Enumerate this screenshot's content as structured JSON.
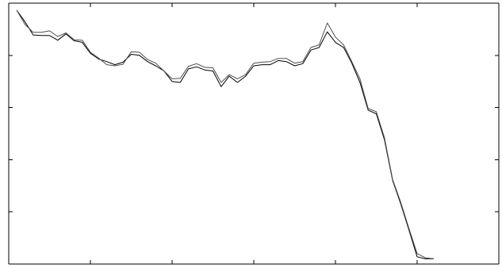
{
  "chart_data": {
    "type": "line",
    "xlim": [
      0,
      60
    ],
    "ylim": [
      0,
      5
    ],
    "grid": false,
    "legend": "none",
    "x_ticks": [
      10,
      20,
      30,
      40,
      50
    ],
    "y_ticks": [
      1,
      2,
      3,
      4
    ],
    "series": [
      {
        "color": "#000000",
        "x": [
          1,
          2,
          3,
          4,
          5,
          6,
          7,
          8,
          9,
          10,
          11,
          12,
          13,
          14,
          15,
          16,
          17,
          18,
          19,
          20,
          21,
          22,
          23,
          24,
          25,
          26,
          27,
          28,
          29,
          30,
          31,
          32,
          33,
          34,
          35,
          36,
          37,
          38,
          39,
          40,
          41,
          42,
          43,
          44,
          45,
          46,
          47,
          48,
          49,
          50,
          51,
          52
        ],
        "y": [
          4.86,
          4.64,
          4.39,
          4.38,
          4.38,
          4.29,
          4.41,
          4.28,
          4.25,
          4.04,
          3.93,
          3.88,
          3.82,
          3.87,
          4.02,
          4.0,
          3.88,
          3.8,
          3.7,
          3.5,
          3.48,
          3.74,
          3.78,
          3.72,
          3.7,
          3.4,
          3.6,
          3.48,
          3.6,
          3.8,
          3.82,
          3.82,
          3.9,
          3.88,
          3.8,
          3.84,
          4.1,
          4.15,
          4.45,
          4.25,
          4.15,
          3.85,
          3.48,
          2.95,
          2.88,
          2.38,
          1.6,
          1.15,
          0.65,
          0.14,
          0.1,
          0.1
        ]
      },
      {
        "color": "#4d4d4d",
        "x": [
          1,
          2,
          3,
          4,
          5,
          6,
          7,
          8,
          9,
          10,
          11,
          12,
          13,
          14,
          15,
          16,
          17,
          18,
          19,
          20,
          21,
          22,
          23,
          24,
          25,
          26,
          27,
          28,
          29,
          30,
          31,
          32,
          33,
          34,
          35,
          36,
          37,
          38,
          39,
          40,
          41,
          42,
          43,
          44,
          45,
          46,
          47,
          48,
          49,
          50,
          51,
          52
        ],
        "y": [
          4.86,
          4.59,
          4.44,
          4.44,
          4.47,
          4.36,
          4.43,
          4.3,
          4.29,
          4.06,
          3.95,
          3.82,
          3.8,
          3.83,
          4.07,
          4.06,
          3.92,
          3.85,
          3.7,
          3.55,
          3.56,
          3.79,
          3.84,
          3.77,
          3.76,
          3.48,
          3.63,
          3.55,
          3.63,
          3.85,
          3.87,
          3.88,
          3.94,
          3.94,
          3.85,
          3.88,
          4.15,
          4.2,
          4.62,
          4.35,
          4.2,
          3.88,
          3.55,
          2.98,
          2.92,
          2.42,
          1.62,
          1.18,
          0.68,
          0.2,
          0.12,
          0.1
        ]
      }
    ]
  }
}
